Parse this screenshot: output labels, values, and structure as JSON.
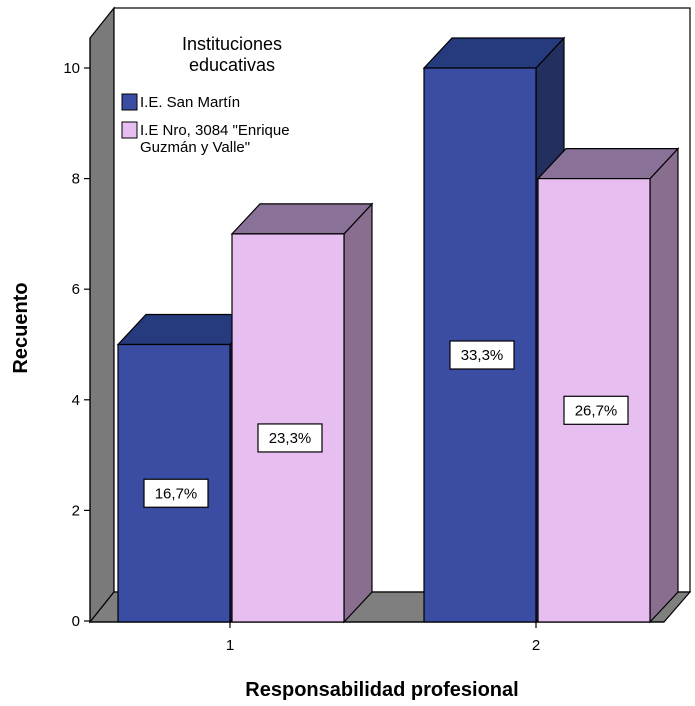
{
  "chart_data": {
    "type": "bar",
    "title": "",
    "xlabel": "Responsabilidad profesional",
    "ylabel": "Recuento",
    "categories": [
      "1",
      "2"
    ],
    "ylim": [
      0,
      10
    ],
    "yticks": [
      "0",
      "2",
      "4",
      "6",
      "8",
      "10"
    ],
    "legend": {
      "title_lines": [
        "Instituciones",
        "educativas"
      ],
      "placement": "top-left"
    },
    "series": [
      {
        "name_lines": [
          "I.E. San Martín"
        ],
        "values": [
          5,
          10
        ],
        "labels": [
          "16,7%",
          "33,3%"
        ],
        "color": "#3B4CA3"
      },
      {
        "name_lines": [
          "I.E Nro, 3084 \"Enrique",
          "Guzmán y Valle\""
        ],
        "values": [
          7,
          8
        ],
        "labels": [
          "23,3%",
          "26,7%"
        ],
        "color": "#E6BEF0"
      }
    ],
    "colors": {
      "wall": "#ffffff",
      "side_wall": "#7A7A7A",
      "floor": "#7F7F7F",
      "series1_top": "#263A7E",
      "series1_side": "#232F5E",
      "series2_top": "#8A7198",
      "series2_side": "#8A6E90"
    }
  }
}
